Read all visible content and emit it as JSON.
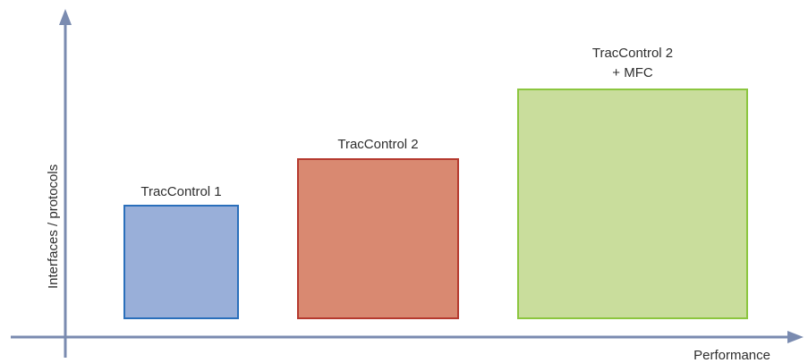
{
  "axes": {
    "x_label": "Performance",
    "y_label": "Interfaces / protocols",
    "axis_color": "#7a8bb0"
  },
  "boxes": [
    {
      "name": "tc1",
      "label_lines": [
        "TracControl 1"
      ],
      "fill": "#99afd9",
      "stroke": "#2a6fbb"
    },
    {
      "name": "tc2",
      "label_lines": [
        "TracControl 2"
      ],
      "fill": "#d98971",
      "stroke": "#b53a2f"
    },
    {
      "name": "tc2-mfc",
      "label_lines": [
        "TracControl 2",
        "+ MFC"
      ],
      "fill": "#c9dd9c",
      "stroke": "#8cc63f"
    }
  ]
}
